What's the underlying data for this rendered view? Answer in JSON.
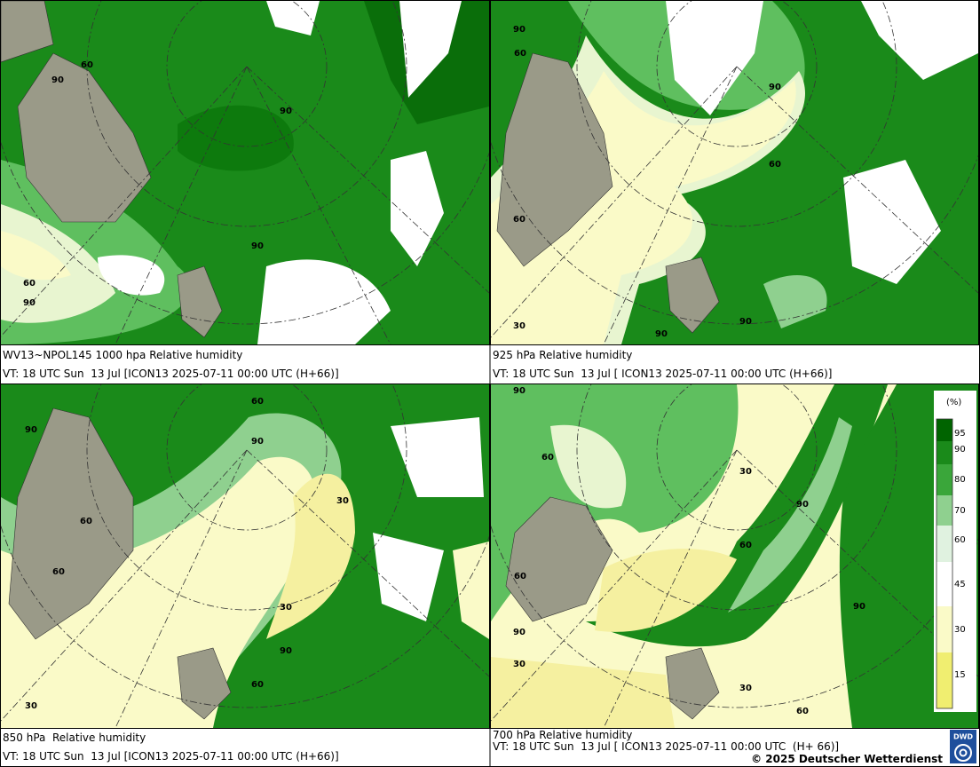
{
  "panels": [
    {
      "title": "WV13~NPOL145 1000 hpa Relative humidity",
      "valid_time": "VT: 18 UTC Sun  13 Jul [ICON13 2025-07-11 00:00 UTC (H+66)]",
      "contour_labels": [
        "90",
        "60",
        "90",
        "90",
        "60",
        "90"
      ]
    },
    {
      "title": "925 hPa Relative humidity",
      "valid_time": "VT: 18 UTC Sun  13 Jul [ ICON13 2025-07-11 00:00 UTC (H+66)]",
      "contour_labels": [
        "90",
        "60",
        "90",
        "60",
        "60",
        "90",
        "90",
        "30"
      ]
    },
    {
      "title": "850 hPa  Relative humidity",
      "valid_time": "VT: 18 UTC Sun  13 Jul [ICON13 2025-07-11 00:00 UTC (H+66)]",
      "contour_labels": [
        "90",
        "60",
        "90",
        "30",
        "60",
        "60",
        "30",
        "90",
        "60",
        "30"
      ]
    },
    {
      "title": "700 hPa Relative humidity",
      "valid_time": "VT: 18 UTC Sun  13 Jul [ ICON13 2025-07-11 00:00 UTC  (H+ 66)]",
      "contour_labels": [
        "90",
        "60",
        "30",
        "90",
        "60",
        "60",
        "90",
        "90",
        "30",
        "30",
        "60"
      ]
    }
  ],
  "colorbar": {
    "unit": "(%)",
    "labels": [
      "95",
      "90",
      "80",
      "70",
      "60",
      "45",
      "30",
      "15"
    ]
  },
  "footer": {
    "copyright": "© 2025 Deutscher Wetterdienst",
    "logo": "DWD"
  }
}
